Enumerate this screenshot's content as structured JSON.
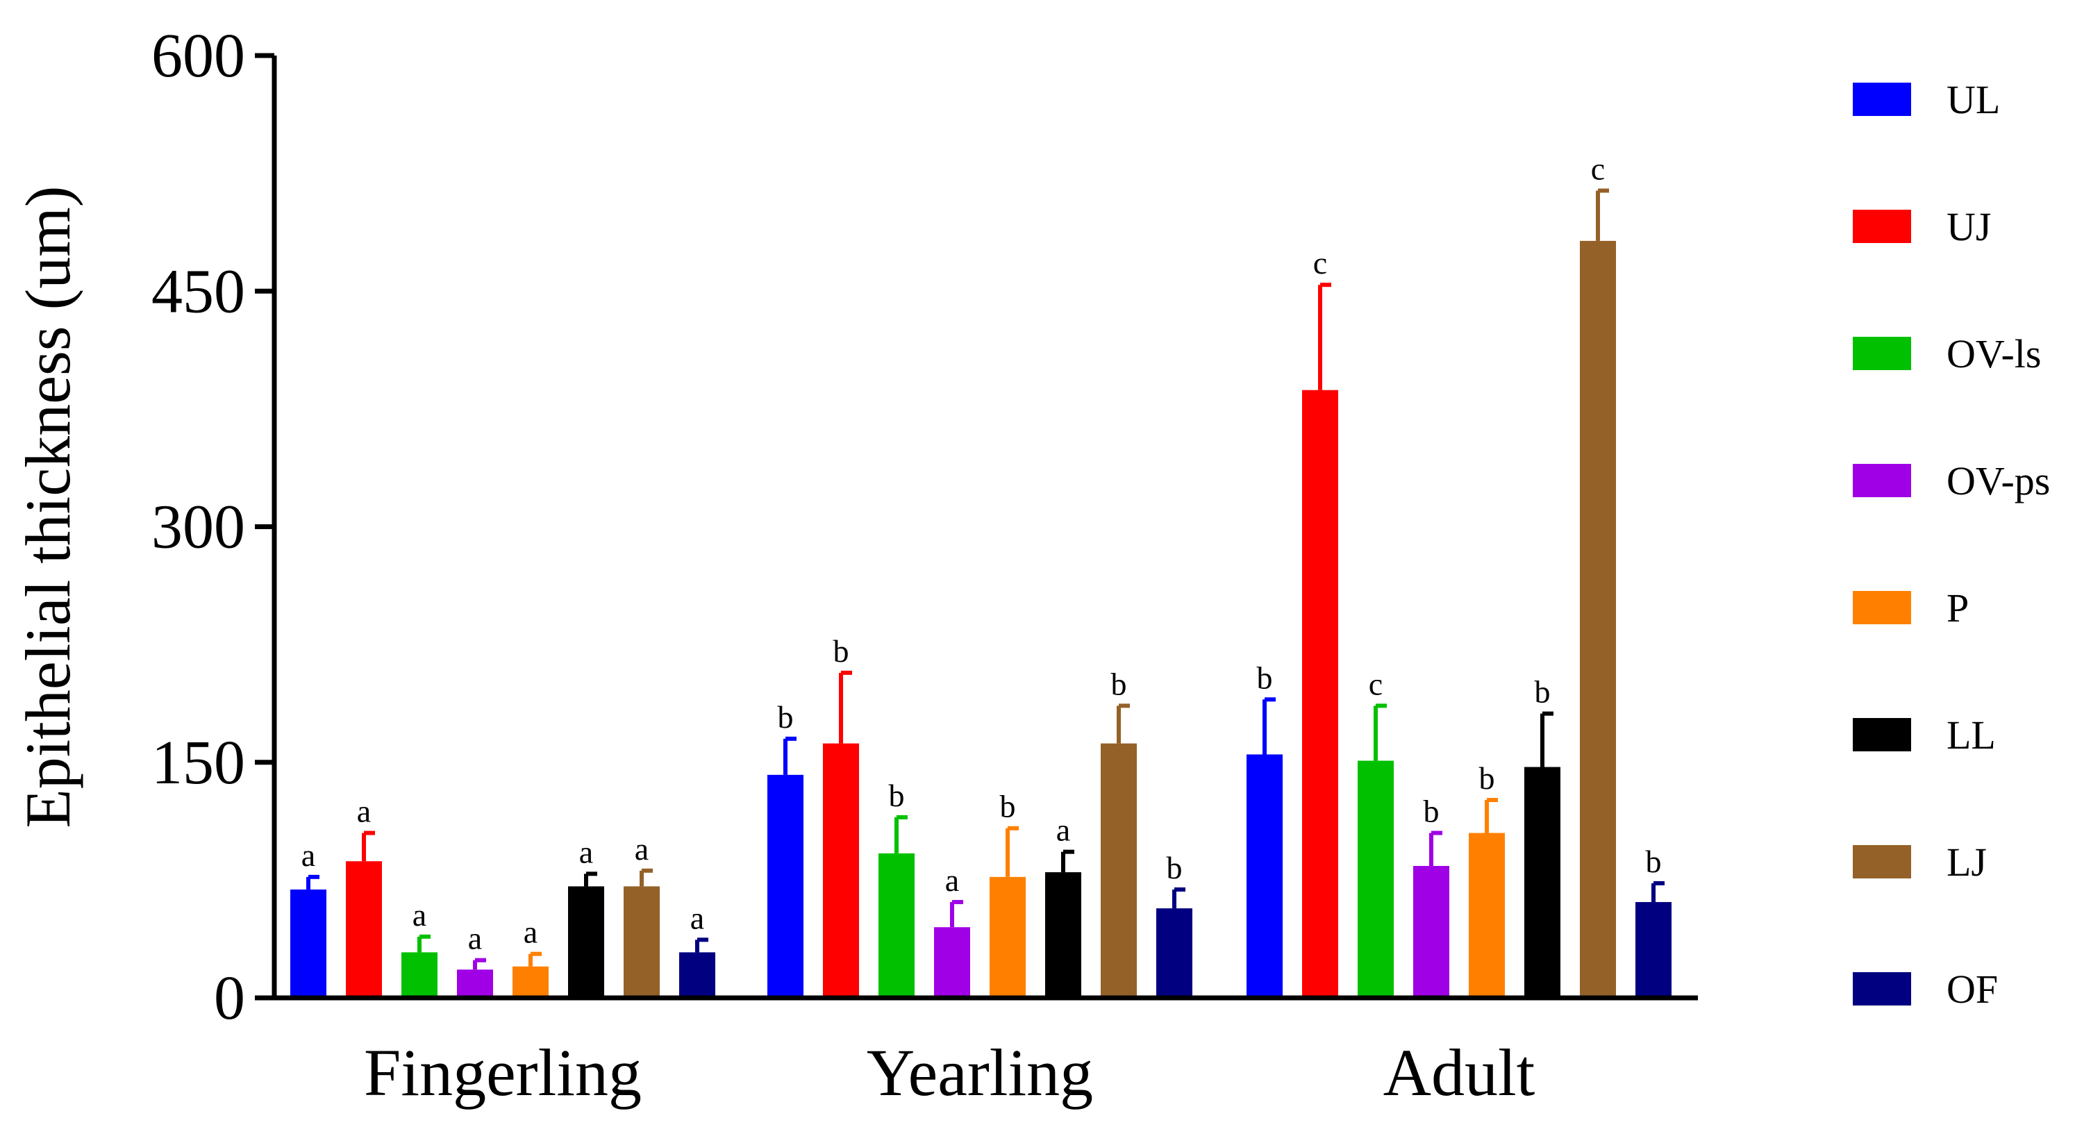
{
  "chart_data": {
    "type": "bar",
    "title": "",
    "xlabel": "",
    "ylabel": "Epithelial thickness (um)",
    "ylim": [
      0,
      600
    ],
    "yticks": [
      0,
      150,
      300,
      450,
      600
    ],
    "ytick_labels": [
      "0",
      "150",
      "300",
      "450",
      "600"
    ],
    "categories": [
      "Fingerling",
      "Yearling",
      "Adult"
    ],
    "legend_position": "right",
    "series": [
      {
        "name": "UL",
        "color": "#0000FF",
        "values": [
          69,
          142,
          155
        ],
        "errors": [
          8,
          23,
          35
        ],
        "labels": [
          "a",
          "b",
          "b"
        ]
      },
      {
        "name": "UJ",
        "color": "#FF0000",
        "values": [
          87,
          162,
          387
        ],
        "errors": [
          18,
          45,
          67
        ],
        "labels": [
          "a",
          "b",
          "c"
        ]
      },
      {
        "name": "OV-ls",
        "color": "#00C000",
        "values": [
          29,
          92,
          151
        ],
        "errors": [
          10,
          23,
          35
        ],
        "labels": [
          "a",
          "b",
          "c"
        ]
      },
      {
        "name": "OV-ps",
        "color": "#A000E6",
        "values": [
          18,
          45,
          84
        ],
        "errors": [
          6,
          16,
          21
        ],
        "labels": [
          "a",
          "a",
          "b"
        ]
      },
      {
        "name": "P",
        "color": "#FF8000",
        "values": [
          20,
          77,
          105
        ],
        "errors": [
          8,
          31,
          21
        ],
        "labels": [
          "a",
          "b",
          "b"
        ]
      },
      {
        "name": "LL",
        "color": "#000000",
        "values": [
          71,
          80,
          147
        ],
        "errors": [
          8,
          13,
          34
        ],
        "labels": [
          "a",
          "a",
          "b"
        ]
      },
      {
        "name": "LJ",
        "color": "#946128",
        "values": [
          71,
          162,
          482
        ],
        "errors": [
          10,
          24,
          32
        ],
        "labels": [
          "a",
          "b",
          "c"
        ]
      },
      {
        "name": "OF",
        "color": "#000080",
        "values": [
          29,
          57,
          61
        ],
        "errors": [
          8,
          12,
          12
        ],
        "labels": [
          "a",
          "b",
          "b"
        ]
      }
    ]
  }
}
